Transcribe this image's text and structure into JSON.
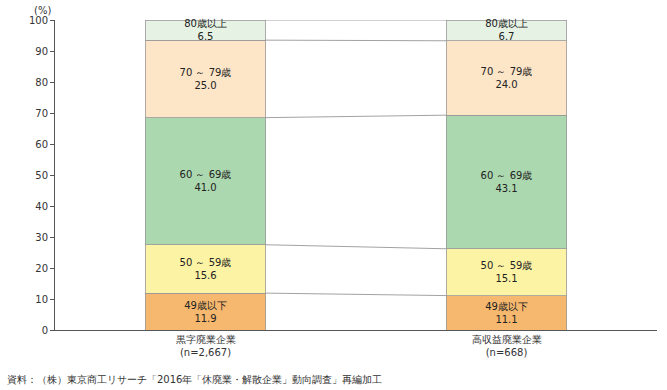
{
  "chart_data": {
    "type": "bar",
    "stacked": true,
    "data_labels": true,
    "grid": false,
    "ylabel": "(%)",
    "source": "資料：（株）東京商工リサーチ「2016年「休廃業・解散企業」動向調査」再編加工",
    "categories": [
      "黒字廃業企業\n(n=2,667)",
      "高収益廃業企業\n(n=668)"
    ],
    "ylim": [
      0,
      100
    ],
    "yticks": [
      0,
      10,
      20,
      30,
      40,
      50,
      60,
      70,
      80,
      90,
      100
    ],
    "series": [
      {
        "name": "49歳以下",
        "color": "#f6b86e",
        "values": [
          11.9,
          11.1
        ],
        "value_labels": [
          "11.9",
          "11.1"
        ]
      },
      {
        "name": "50 ～ 59歳",
        "color": "#fdf3a4",
        "values": [
          15.6,
          15.1
        ],
        "value_labels": [
          "15.6",
          "15.1"
        ]
      },
      {
        "name": "60 ～ 69歳",
        "color": "#acd8b0",
        "values": [
          41.0,
          43.1
        ],
        "value_labels": [
          "41.0",
          "43.1"
        ]
      },
      {
        "name": "70 ～ 79歳",
        "color": "#fde5c8",
        "values": [
          25.0,
          24.0
        ],
        "value_labels": [
          "25.0",
          "24.0"
        ]
      },
      {
        "name": "80歳以上",
        "color": "#e6f2e4",
        "values": [
          6.5,
          6.7
        ],
        "value_labels": [
          "6.5",
          "6.7"
        ]
      }
    ]
  }
}
